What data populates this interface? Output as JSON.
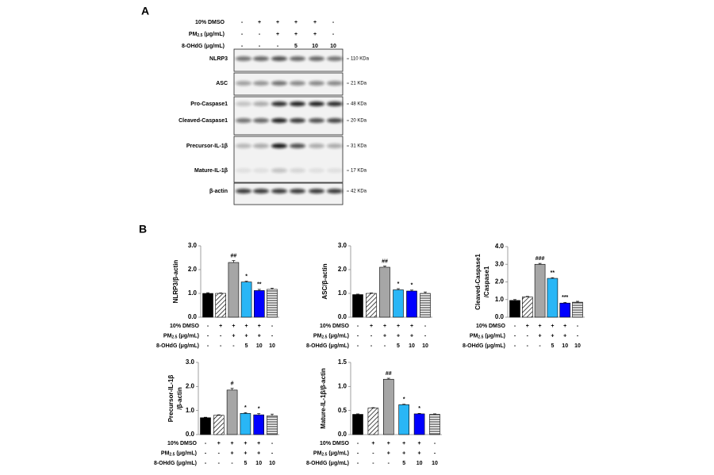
{
  "panel_a": {
    "label": "A",
    "conditions": [
      {
        "label": [
          "10% DMSO"
        ],
        "marks": [
          "-",
          "+",
          "+",
          "+",
          "+",
          "-"
        ]
      },
      {
        "label": [
          "PM",
          "2.5",
          " (μg/mL)"
        ],
        "marks": [
          "-",
          "-",
          "+",
          "+",
          "+",
          "-"
        ]
      },
      {
        "label": [
          "8-OHdG (μg/mL)"
        ],
        "marks": [
          "-",
          "-",
          "-",
          "5",
          "10",
          "10"
        ]
      }
    ],
    "bands": [
      {
        "label": "NLRP3",
        "kda": "110 KDa"
      },
      {
        "label": "ASC",
        "kda": "21 KDa"
      },
      {
        "label": "Pro-Caspase1",
        "kda": "48 KDa"
      },
      {
        "label": "Cleaved-Caspase1",
        "kda": "20 KDa"
      },
      {
        "label": "Precursor-IL-1β",
        "kda": "31 KDa"
      },
      {
        "label": "Mature-IL-1β",
        "kda": "17 KDa"
      },
      {
        "label": "β-actin",
        "kda": "42 KDa"
      }
    ]
  },
  "panel_b": {
    "label": "B"
  },
  "chart_data": [
    {
      "type": "bar",
      "ylabel": [
        "NLRP3/β-actin"
      ],
      "values": [
        1.0,
        1.0,
        2.3,
        1.48,
        1.12,
        1.17
      ],
      "errors": [
        0.03,
        0.02,
        0.08,
        0.03,
        0.05,
        0.05
      ],
      "value_annotations": [
        null,
        null,
        "##",
        "*",
        "**",
        null
      ],
      "colors": [
        "#000000",
        "#ffffff",
        "#a6a6a6",
        "#29b6f6",
        "#0000ff",
        "#ffffff"
      ],
      "patterns": [
        null,
        "diagonal",
        null,
        null,
        null,
        "horizontal"
      ],
      "ylim": [
        0,
        3
      ],
      "yticks": [
        {
          "value": 0,
          "label": "0.0"
        },
        {
          "value": 1,
          "label": "1.0"
        },
        {
          "value": 2,
          "label": "2.0"
        },
        {
          "value": 3,
          "label": "3.0"
        }
      ],
      "conditions": [
        {
          "label": [
            "10% DMSO"
          ],
          "marks": [
            "-",
            "+",
            "+",
            "+",
            "+",
            "-"
          ]
        },
        {
          "label": [
            "PM",
            "2.5",
            " (μg/mL)"
          ],
          "marks": [
            "-",
            "-",
            "+",
            "+",
            "+",
            "-"
          ]
        },
        {
          "label": [
            "8-OHdG (μg/mL)"
          ],
          "marks": [
            "-",
            "-",
            "-",
            "5",
            "10",
            "10"
          ]
        }
      ]
    },
    {
      "type": "bar",
      "ylabel": [
        "ASC/β-actin"
      ],
      "values": [
        0.95,
        1.0,
        2.1,
        1.15,
        1.1,
        1.0
      ],
      "errors": [
        0.02,
        0.02,
        0.05,
        0.05,
        0.04,
        0.06
      ],
      "value_annotations": [
        null,
        null,
        "##",
        "*",
        "*",
        null
      ],
      "colors": [
        "#000000",
        "#ffffff",
        "#a6a6a6",
        "#29b6f6",
        "#0000ff",
        "#ffffff"
      ],
      "patterns": [
        null,
        "diagonal",
        null,
        null,
        null,
        "horizontal"
      ],
      "ylim": [
        0,
        3
      ],
      "yticks": [
        {
          "value": 0,
          "label": "0.0"
        },
        {
          "value": 1,
          "label": "1.0"
        },
        {
          "value": 2,
          "label": "2.0"
        },
        {
          "value": 3,
          "label": "3.0"
        }
      ],
      "conditions": [
        {
          "label": [
            "10% DMSO"
          ],
          "marks": [
            "-",
            "+",
            "+",
            "+",
            "+",
            "-"
          ]
        },
        {
          "label": [
            "PM",
            "2.5",
            " (μg/mL)"
          ],
          "marks": [
            "-",
            "-",
            "+",
            "+",
            "+",
            "-"
          ]
        },
        {
          "label": [
            "8-OHdG (μg/mL)"
          ],
          "marks": [
            "-",
            "-",
            "-",
            "5",
            "10",
            "10"
          ]
        }
      ]
    },
    {
      "type": "bar",
      "ylabel": [
        "Cleaved-Caspase1",
        "/Caspase1"
      ],
      "values": [
        0.95,
        1.15,
        3.0,
        2.2,
        0.8,
        0.85
      ],
      "errors": [
        0.05,
        0.03,
        0.05,
        0.04,
        0.04,
        0.05
      ],
      "value_annotations": [
        null,
        null,
        "###",
        "**",
        "***",
        null
      ],
      "colors": [
        "#000000",
        "#ffffff",
        "#a6a6a6",
        "#29b6f6",
        "#0000ff",
        "#ffffff"
      ],
      "patterns": [
        null,
        "diagonal",
        null,
        null,
        null,
        "horizontal"
      ],
      "ylim": [
        0,
        4
      ],
      "yticks": [
        {
          "value": 0,
          "label": "0.0"
        },
        {
          "value": 1,
          "label": "1.0"
        },
        {
          "value": 2,
          "label": "2.0"
        },
        {
          "value": 3,
          "label": "3.0"
        },
        {
          "value": 4,
          "label": "4.0"
        }
      ],
      "conditions": [
        {
          "label": [
            "10% DMSO"
          ],
          "marks": [
            "-",
            "+",
            "+",
            "+",
            "+",
            "-"
          ]
        },
        {
          "label": [
            "PM",
            "2.5",
            " (μg/mL)"
          ],
          "marks": [
            "-",
            "-",
            "+",
            "+",
            "+",
            "-"
          ]
        },
        {
          "label": [
            "8-OHdG (μg/mL)"
          ],
          "marks": [
            "-",
            "-",
            "-",
            "5",
            "10",
            "10"
          ]
        }
      ]
    },
    {
      "type": "bar",
      "ylabel": [
        "Precursor-IL-1β",
        "/β-actin"
      ],
      "values": [
        0.7,
        0.8,
        1.85,
        0.88,
        0.82,
        0.78
      ],
      "errors": [
        0.02,
        0.02,
        0.07,
        0.03,
        0.05,
        0.07
      ],
      "value_annotations": [
        null,
        null,
        "#",
        "*",
        "*",
        null
      ],
      "colors": [
        "#000000",
        "#ffffff",
        "#a6a6a6",
        "#29b6f6",
        "#0000ff",
        "#ffffff"
      ],
      "patterns": [
        null,
        "diagonal",
        null,
        null,
        null,
        "horizontal"
      ],
      "ylim": [
        0,
        3
      ],
      "yticks": [
        {
          "value": 0,
          "label": "0.0"
        },
        {
          "value": 1,
          "label": "1.0"
        },
        {
          "value": 2,
          "label": "2.0"
        },
        {
          "value": 3,
          "label": "3.0"
        }
      ],
      "conditions": [
        {
          "label": [
            "10% DMSO"
          ],
          "marks": [
            "-",
            "+",
            "+",
            "+",
            "+",
            "-"
          ]
        },
        {
          "label": [
            "PM",
            "2.5",
            " (μg/mL)"
          ],
          "marks": [
            "-",
            "-",
            "+",
            "+",
            "+",
            "-"
          ]
        },
        {
          "label": [
            "8-OHdG (μg/mL)"
          ],
          "marks": [
            "-",
            "-",
            "-",
            "5",
            "10",
            "10"
          ]
        }
      ]
    },
    {
      "type": "bar",
      "ylabel": [
        "Mature-IL-1β/β-actin"
      ],
      "values": [
        0.42,
        0.55,
        1.15,
        0.62,
        0.43,
        0.42
      ],
      "errors": [
        0.01,
        0.01,
        0.02,
        0.01,
        0.01,
        0.01
      ],
      "value_annotations": [
        null,
        null,
        "##",
        "*",
        "*",
        null
      ],
      "colors": [
        "#000000",
        "#ffffff",
        "#a6a6a6",
        "#29b6f6",
        "#0000ff",
        "#ffffff"
      ],
      "patterns": [
        null,
        "diagonal",
        null,
        null,
        null,
        "horizontal"
      ],
      "ylim": [
        0,
        1.5
      ],
      "yticks": [
        {
          "value": 0,
          "label": "0.0"
        },
        {
          "value": 0.5,
          "label": "0.5"
        },
        {
          "value": 1,
          "label": "1.0"
        },
        {
          "value": 1.5,
          "label": "1.5"
        }
      ],
      "conditions": [
        {
          "label": [
            "10% DMSO"
          ],
          "marks": [
            "-",
            "+",
            "+",
            "+",
            "+",
            "-"
          ]
        },
        {
          "label": [
            "PM",
            "2.5",
            " (μg/mL)"
          ],
          "marks": [
            "-",
            "-",
            "+",
            "+",
            "+",
            "-"
          ]
        },
        {
          "label": [
            "8-OHdG (μg/mL)"
          ],
          "marks": [
            "-",
            "-",
            "-",
            "5",
            "10",
            "10"
          ]
        }
      ]
    }
  ]
}
